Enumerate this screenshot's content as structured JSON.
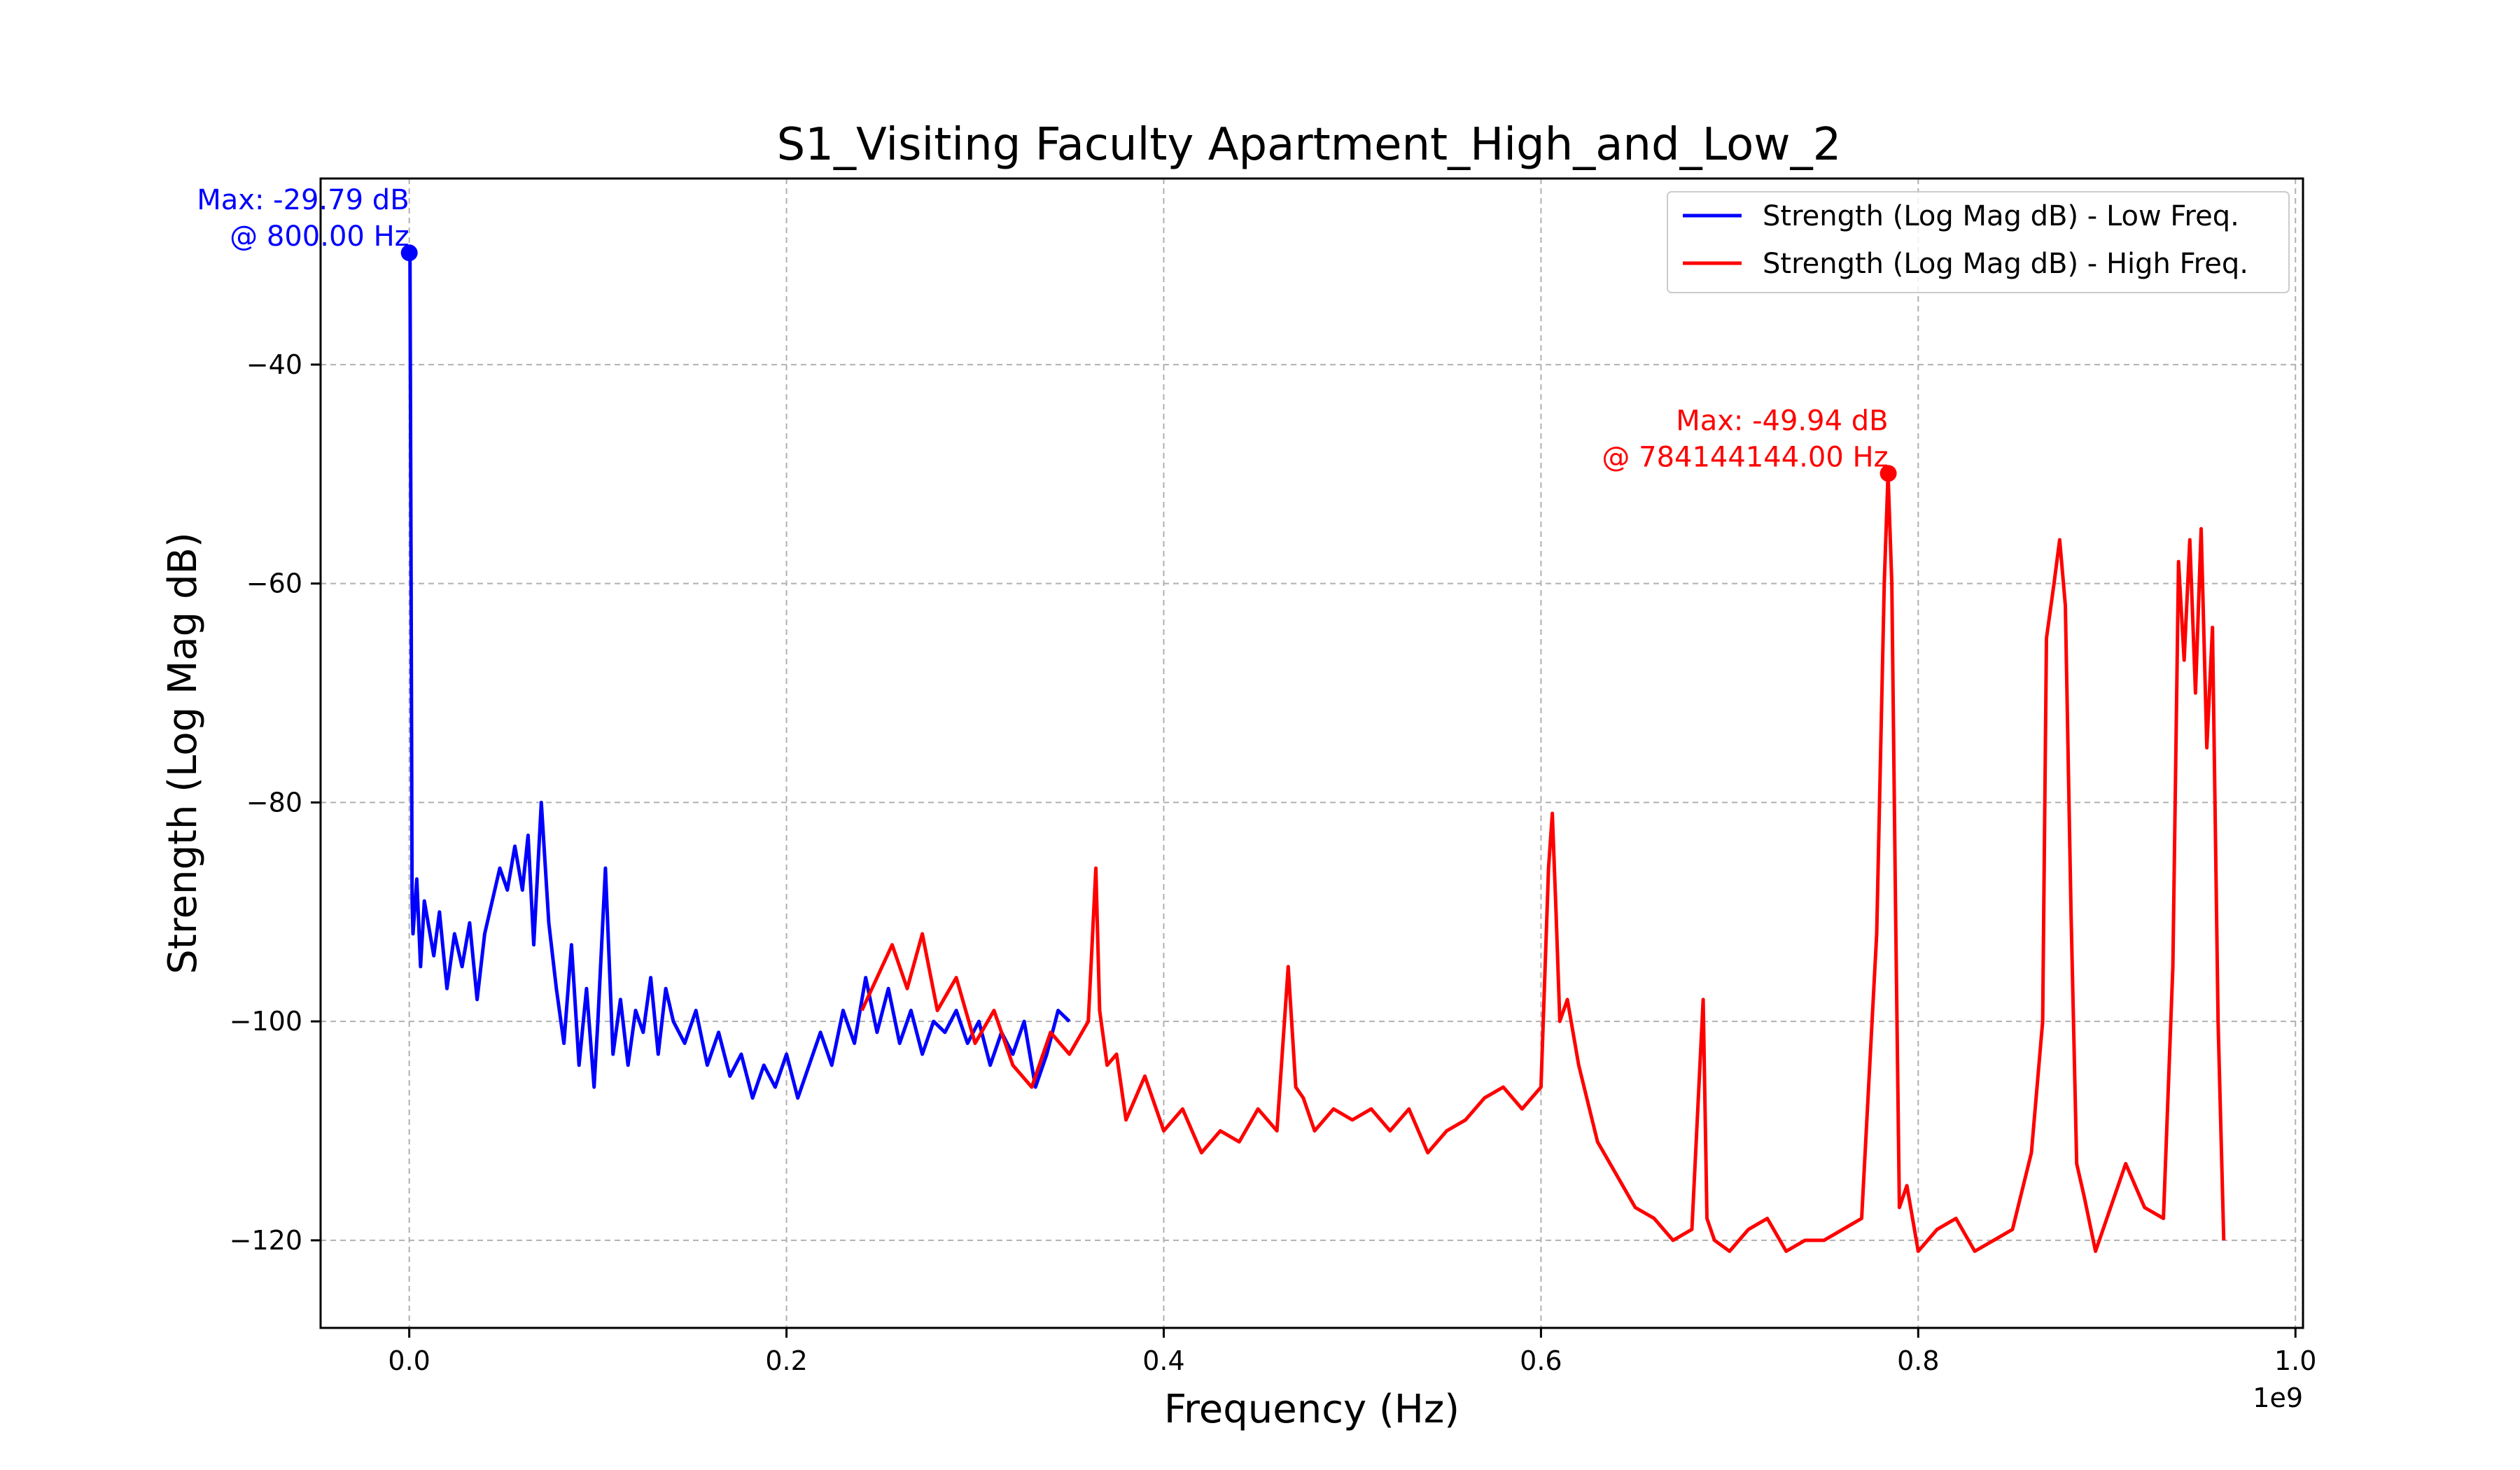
{
  "chart_data": {
    "type": "line",
    "title": "S1_Visiting Faculty Apartment_High_and_Low_2",
    "xlabel": "Frequency (Hz)",
    "ylabel": "Strength (Log Mag dB)",
    "x_offset_label": "1e9",
    "xlim": [
      -0.047,
      1.004
    ],
    "ylim": [
      -128,
      -23
    ],
    "x_ticks": [
      0.0,
      0.2,
      0.4,
      0.6,
      0.8,
      1.0
    ],
    "x_tick_labels": [
      "0.0",
      "0.2",
      "0.4",
      "0.6",
      "0.8",
      "1.0"
    ],
    "y_ticks": [
      -40,
      -60,
      -80,
      -100,
      -120
    ],
    "y_tick_labels": [
      "−40",
      "−60",
      "−80",
      "−100",
      "−120"
    ],
    "grid": true,
    "legend_position": "top-right",
    "series": [
      {
        "name": "Strength (Log Mag dB) - Low Freq.",
        "color": "#0000ff",
        "x": [
          0.0,
          0.0004,
          0.001,
          0.0015,
          0.002,
          0.004,
          0.006,
          0.008,
          0.01,
          0.013,
          0.016,
          0.02,
          0.024,
          0.028,
          0.032,
          0.036,
          0.04,
          0.044,
          0.048,
          0.052,
          0.056,
          0.06,
          0.063,
          0.066,
          0.07,
          0.074,
          0.078,
          0.082,
          0.086,
          0.09,
          0.094,
          0.098,
          0.1,
          0.104,
          0.108,
          0.112,
          0.116,
          0.12,
          0.124,
          0.128,
          0.132,
          0.136,
          0.14,
          0.146,
          0.152,
          0.158,
          0.164,
          0.17,
          0.176,
          0.182,
          0.188,
          0.194,
          0.2,
          0.206,
          0.212,
          0.218,
          0.224,
          0.23,
          0.236,
          0.242,
          0.248,
          0.254,
          0.26,
          0.266,
          0.272,
          0.278,
          0.284,
          0.29,
          0.296,
          0.302,
          0.308,
          0.314,
          0.32,
          0.326,
          0.332,
          0.338,
          0.344,
          0.35
        ],
        "y": [
          -29.79,
          -30.5,
          -60,
          -89,
          -92,
          -87,
          -95,
          -89,
          -91,
          -94,
          -90,
          -97,
          -92,
          -95,
          -91,
          -98,
          -92,
          -89,
          -86,
          -88,
          -84,
          -88,
          -83,
          -93,
          -80,
          -91,
          -97,
          -102,
          -93,
          -104,
          -97,
          -106,
          -100,
          -86,
          -103,
          -98,
          -104,
          -99,
          -101,
          -96,
          -103,
          -97,
          -100,
          -102,
          -99,
          -104,
          -101,
          -105,
          -103,
          -107,
          -104,
          -106,
          -103,
          -107,
          -104,
          -101,
          -104,
          -99,
          -102,
          -96,
          -101,
          -97,
          -102,
          -99,
          -103,
          -100,
          -101,
          -99,
          -102,
          -100,
          -104,
          -101,
          -103,
          -100,
          -106,
          -103,
          -99,
          -100
        ],
        "max_label": "Max: -29.79 dB",
        "max_freq_label": "@ 800.00 Hz",
        "max_point": [
          8e-07,
          -29.79
        ]
      },
      {
        "name": "Strength (Log Mag dB) - High Freq.",
        "color": "#ff0000",
        "x": [
          0.24,
          0.248,
          0.256,
          0.264,
          0.272,
          0.28,
          0.29,
          0.3,
          0.31,
          0.32,
          0.33,
          0.34,
          0.35,
          0.36,
          0.364,
          0.366,
          0.37,
          0.375,
          0.38,
          0.39,
          0.4,
          0.41,
          0.42,
          0.43,
          0.44,
          0.45,
          0.46,
          0.466,
          0.47,
          0.474,
          0.48,
          0.49,
          0.5,
          0.51,
          0.52,
          0.53,
          0.54,
          0.55,
          0.56,
          0.57,
          0.58,
          0.59,
          0.6,
          0.604,
          0.606,
          0.608,
          0.61,
          0.614,
          0.62,
          0.63,
          0.64,
          0.65,
          0.66,
          0.67,
          0.68,
          0.686,
          0.688,
          0.692,
          0.7,
          0.71,
          0.72,
          0.73,
          0.74,
          0.75,
          0.76,
          0.77,
          0.778,
          0.782,
          0.784,
          0.786,
          0.788,
          0.79,
          0.794,
          0.8,
          0.81,
          0.82,
          0.83,
          0.84,
          0.85,
          0.86,
          0.866,
          0.868,
          0.872,
          0.875,
          0.878,
          0.881,
          0.884,
          0.888,
          0.894,
          0.9,
          0.91,
          0.92,
          0.93,
          0.935,
          0.938,
          0.941,
          0.944,
          0.947,
          0.95,
          0.953,
          0.956,
          0.959,
          0.962
        ],
        "y": [
          -99,
          -96,
          -93,
          -97,
          -92,
          -99,
          -96,
          -102,
          -99,
          -104,
          -106,
          -101,
          -103,
          -100,
          -86,
          -99,
          -104,
          -103,
          -109,
          -105,
          -110,
          -108,
          -112,
          -110,
          -111,
          -108,
          -110,
          -95,
          -106,
          -107,
          -110,
          -108,
          -109,
          -108,
          -110,
          -108,
          -112,
          -110,
          -109,
          -107,
          -106,
          -108,
          -106,
          -86,
          -81,
          -90,
          -100,
          -98,
          -104,
          -111,
          -114,
          -117,
          -118,
          -120,
          -119,
          -98,
          -118,
          -120,
          -121,
          -119,
          -118,
          -121,
          -120,
          -120,
          -119,
          -118,
          -92,
          -60,
          -49.94,
          -60,
          -90,
          -117,
          -115,
          -121,
          -119,
          -118,
          -121,
          -120,
          -119,
          -112,
          -100,
          -65,
          -60,
          -56,
          -62,
          -90,
          -113,
          -116,
          -121,
          -118,
          -113,
          -117,
          -118,
          -95,
          -58,
          -67,
          -56,
          -70,
          -55,
          -75,
          -64,
          -100,
          -120
        ],
        "max_label": "Max: -49.94 dB",
        "max_freq_label": "@ 784144144.00 Hz",
        "max_point": [
          0.784144144,
          -49.94
        ]
      }
    ]
  }
}
